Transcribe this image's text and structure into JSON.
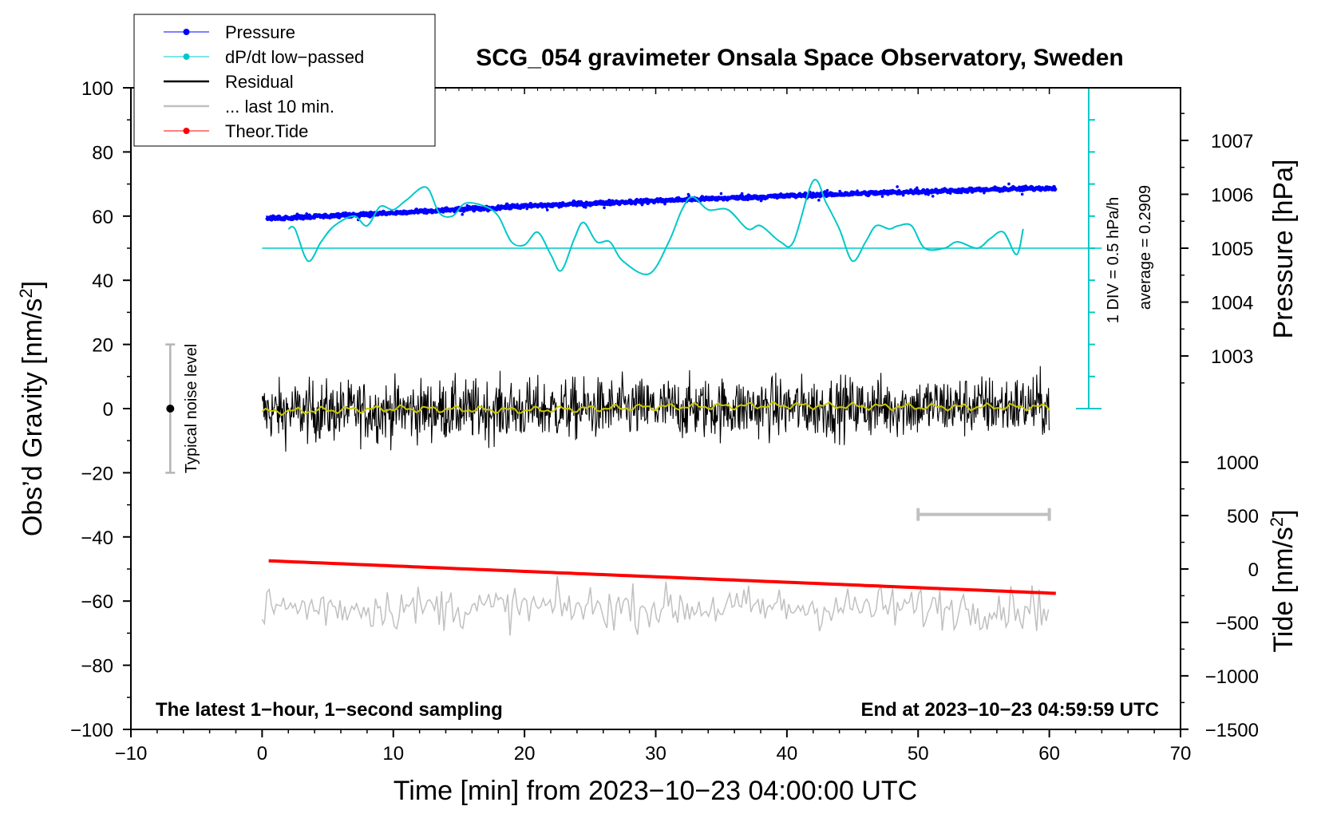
{
  "chart_data": {
    "type": "line",
    "title": "SCG_054 gravimeter Onsala Space Observatory, Sweden",
    "xlabel": "Time [min] from 2023−10−23 04:00:00 UTC",
    "ylabel": "Obs’d Gravity [nm/s²]",
    "ylabel_parts": {
      "main": "Obs’d Gravity [nm/s",
      "sup": "2",
      "end": "]"
    },
    "right_top_label": "Pressure [hPa]",
    "right_bottom_label_parts": {
      "main": "Tide [nm/s",
      "sup": "2",
      "end": "]"
    },
    "xlim": [
      -10,
      70
    ],
    "ylim": [
      -100,
      100
    ],
    "xticks": [
      -10,
      0,
      10,
      20,
      30,
      40,
      50,
      60,
      70
    ],
    "xtick_labels": [
      "−10",
      "0",
      "10",
      "20",
      "30",
      "40",
      "50",
      "60",
      "70"
    ],
    "yticks": [
      -100,
      -80,
      -60,
      -40,
      -20,
      0,
      20,
      40,
      60,
      80,
      100
    ],
    "ytick_labels": [
      "−100",
      "−80",
      "−60",
      "−40",
      "−20",
      "0",
      "20",
      "40",
      "60",
      "80",
      "100"
    ],
    "pressure_axis": {
      "ticks": [
        1003,
        1004,
        1005,
        1006,
        1007
      ],
      "tick_labels": [
        "1003",
        "1004",
        "1005",
        "1006",
        "1007"
      ],
      "gravity_at_1005": 50,
      "gravity_per_hPa": 16.8
    },
    "tide_axis": {
      "ticks": [
        -1500,
        -1000,
        -500,
        0,
        500,
        1000
      ],
      "tick_labels": [
        "−1500",
        "−1000",
        "−500",
        "0",
        "500",
        "1000"
      ],
      "gravity_at_0": -50,
      "gravity_per_1000": 33.3
    },
    "dpdt_scale": {
      "x_position": 63,
      "range": [
        0,
        100
      ],
      "divisions": 10,
      "label": "1 DIV = 0.5 hPa/h",
      "average_label": "average = 0.2909",
      "baseline": 50
    },
    "legend": {
      "position": "top-left",
      "entries": [
        {
          "label": "Pressure",
          "color": "#0000ff",
          "marker": true
        },
        {
          "label": "dP/dt low−passed",
          "color": "#00c8c8",
          "marker": true
        },
        {
          "label": "Residual",
          "color": "#000000",
          "marker": false
        },
        {
          "label": "... last 10 min.",
          "color": "#c0c0c0",
          "marker": false
        },
        {
          "label": "Theor.Tide",
          "color": "#ff0000",
          "marker": true
        }
      ]
    },
    "noise_level": {
      "label": "Typical noise level",
      "x": -7,
      "center": 0,
      "range": [
        -20,
        20
      ]
    },
    "last10_bracket": {
      "x": [
        50,
        60
      ],
      "y": -33
    },
    "annotations": {
      "bottom_left": "The latest 1−hour, 1−second sampling",
      "bottom_right": "End at 2023−10−23 04:59:59 UTC"
    },
    "series": [
      {
        "name": "Pressure",
        "color": "#0000ff",
        "unit": "hPa",
        "x": [
          0.3,
          10,
          20,
          30,
          40,
          50,
          60.5
        ],
        "values": [
          1005.55,
          1005.65,
          1005.78,
          1005.88,
          1005.97,
          1006.05,
          1006.12
        ]
      },
      {
        "name": "dP/dt low-passed",
        "color": "#00c8c8",
        "unit": "nm/s² (plot)",
        "x": [
          2,
          2.5,
          3.5,
          4.5,
          5.5,
          7,
          8,
          9,
          10,
          11,
          12.5,
          13.5,
          14.5,
          15.5,
          17,
          18,
          19,
          20,
          21,
          22,
          22.8,
          23.8,
          24.5,
          25.5,
          26.5,
          27.5,
          29.5,
          31,
          32,
          32.8,
          34,
          35.5,
          37,
          38,
          39.5,
          40.5,
          42,
          43,
          44,
          45,
          46,
          46.8,
          47.8,
          48.5,
          49.5,
          50.5,
          52,
          53,
          54.5,
          55.5,
          56.5,
          57.5,
          58
        ],
        "values": [
          56,
          56,
          46,
          52,
          57,
          60,
          57,
          63,
          62,
          65,
          69,
          61,
          60,
          64,
          63,
          60,
          52,
          51,
          55,
          48,
          43,
          53,
          58,
          52,
          52,
          46,
          42,
          52,
          62,
          66,
          62,
          62,
          56,
          57,
          52,
          52,
          71,
          64,
          56,
          46,
          52,
          57,
          56,
          57,
          57,
          50,
          50,
          52,
          50,
          53,
          55,
          48,
          56
        ]
      },
      {
        "name": "Residual",
        "color": "#000000",
        "unit": "nm/s²",
        "x": [
          0,
          60
        ],
        "values": [
          -1,
          1
        ],
        "noise_amplitude": 8
      },
      {
        "name": "Residual low-passed",
        "color": "#c8c800",
        "unit": "nm/s²",
        "x": [
          0,
          10,
          20,
          30,
          40,
          50,
          60
        ],
        "values": [
          -1,
          0,
          -0.5,
          0.5,
          1,
          0.5,
          0.5
        ]
      },
      {
        "name": "Theor.Tide",
        "color": "#ff0000",
        "unit": "nm/s²",
        "x": [
          0.5,
          60.5
        ],
        "values": [
          77,
          -228
        ]
      },
      {
        "name": "last 10 min.",
        "color": "#c0c0c0",
        "unit": "nm/s² (plot)",
        "x": [
          0,
          60
        ],
        "values": [
          -62,
          -62
        ],
        "noise_amplitude": 4.5
      }
    ]
  }
}
